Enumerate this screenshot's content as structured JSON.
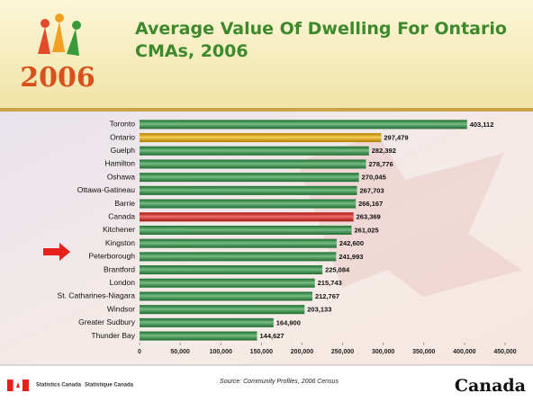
{
  "slide": {
    "logo": "2006",
    "source": "Source: Community Profiles, 2006 Census",
    "agency_en": "Statistics Canada",
    "agency_fr": "Statistique Canada",
    "wordmark": "Canada"
  },
  "chart_data": {
    "type": "bar",
    "orientation": "horizontal",
    "title": "Average Value Of Dwelling For Ontario CMAs, 2006",
    "categories": [
      "Toronto",
      "Ontario",
      "Guelph",
      "Hamilton",
      "Oshawa",
      "Ottawa-Gatineau",
      "Barrie",
      "Canada",
      "Kitchener",
      "Kingston",
      "Peterborough",
      "Brantford",
      "London",
      "St. Catharines-Niagara",
      "Windsor",
      "Greater Sudbury",
      "Thunder Bay"
    ],
    "values": [
      403112,
      297479,
      282392,
      278776,
      270045,
      267703,
      266167,
      263369,
      261025,
      242600,
      241993,
      225084,
      215743,
      212767,
      203133,
      164900,
      144627
    ],
    "value_labels": [
      "403,112",
      "297,479",
      "282,392",
      "278,776",
      "270,045",
      "267,703",
      "266,167",
      "263,369",
      "261,025",
      "242,600",
      "241,993",
      "225,084",
      "215,743",
      "212,767",
      "203,133",
      "164,900",
      "144,627"
    ],
    "colors": [
      "#2f9a45",
      "#f7b500",
      "#2f9a45",
      "#2f9a45",
      "#2f9a45",
      "#2f9a45",
      "#2f9a45",
      "#e8231c",
      "#2f9a45",
      "#2f9a45",
      "#2f9a45",
      "#2f9a45",
      "#2f9a45",
      "#2f9a45",
      "#2f9a45",
      "#2f9a45",
      "#2f9a45"
    ],
    "xlim": [
      0,
      450000
    ],
    "xticks": [
      0,
      {
        "value": 50000,
        "label": "50,000"
      },
      {
        "value": 100000,
        "label": "100,000"
      },
      {
        "value": 150000,
        "label": "150,000"
      },
      {
        "value": 200000,
        "label": "200,000"
      },
      {
        "value": 250000,
        "label": "250,000"
      },
      {
        "value": 300000,
        "label": "300,000"
      },
      {
        "value": 350000,
        "label": "350,000"
      },
      {
        "value": 400000,
        "label": "400,000"
      },
      {
        "value": 450000,
        "label": "450,000"
      }
    ]
  }
}
